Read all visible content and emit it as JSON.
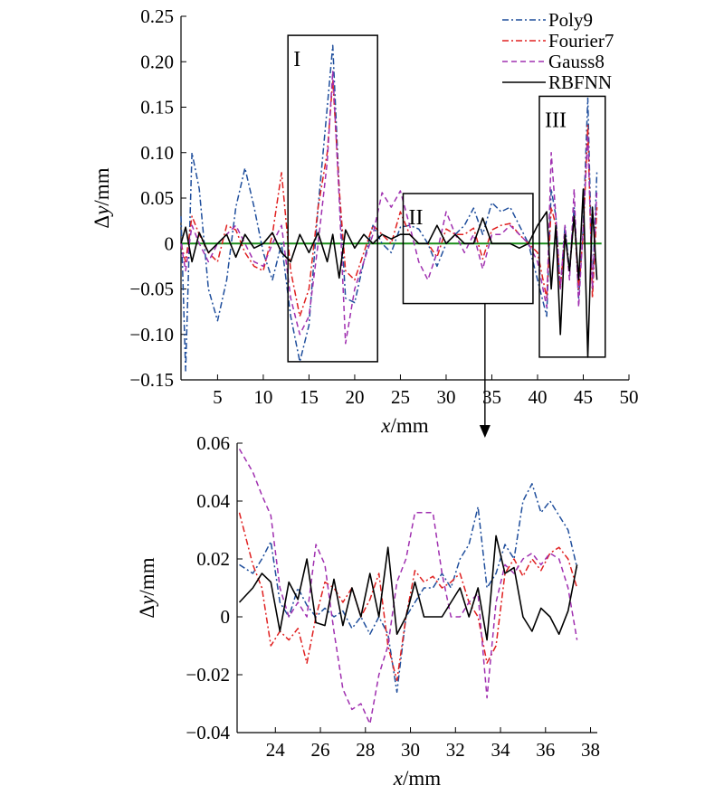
{
  "legend": [
    {
      "name": "Poly9",
      "color": "#1f4e9c",
      "dash": "dashdot"
    },
    {
      "name": "Fourier7",
      "color": "#e02020",
      "dash": "dashdot"
    },
    {
      "name": "Gauss8",
      "color": "#a030b0",
      "dash": "dashed"
    },
    {
      "name": "RBFNN",
      "color": "#000000",
      "dash": "solid"
    }
  ],
  "zero_line_color": "#1a8c1a",
  "regions": [
    {
      "label": "I",
      "xmin": 12.7,
      "xmax": 22.5,
      "ymin": -0.13,
      "ymax": 0.229
    },
    {
      "label": "II",
      "xmin": 25.3,
      "xmax": 39.5,
      "ymin": -0.066,
      "ymax": 0.055
    },
    {
      "label": "III",
      "xmin": 40.2,
      "xmax": 47.4,
      "ymin": -0.125,
      "ymax": 0.162
    }
  ],
  "chart_data": [
    {
      "type": "line",
      "xlabel_var": "x",
      "xlabel_unit": "/mm",
      "ylabel_var": "y",
      "ylabel_prefix": "Δ",
      "ylabel_unit": "/mm",
      "xlim": [
        1,
        50
      ],
      "ylim": [
        -0.15,
        0.25
      ],
      "xticks": [
        5,
        10,
        15,
        20,
        25,
        30,
        35,
        40,
        45,
        50
      ],
      "yticks": [
        -0.15,
        -0.1,
        -0.05,
        0,
        0.05,
        0.1,
        0.15,
        0.2,
        0.25
      ],
      "ytick_labels": [
        "−0.15",
        "−0.10",
        "−0.05",
        "0",
        "0.05",
        "0.10",
        "0.15",
        "0.20",
        "0.25"
      ],
      "series": [
        {
          "name": "Poly9",
          "x": [
            1,
            1.5,
            2.2,
            3,
            4,
            5,
            6,
            7,
            8,
            9,
            10,
            11,
            12,
            13,
            14,
            15,
            16,
            17,
            17.6,
            18.3,
            19,
            20,
            21,
            22,
            23,
            24,
            25,
            26,
            27,
            28,
            29,
            30,
            31,
            32,
            33,
            34,
            35,
            36,
            37,
            38,
            39,
            40,
            41,
            41.5,
            42,
            42.5,
            43,
            43.5,
            44,
            44.5,
            45,
            45.5,
            46,
            46.5
          ],
          "y": [
            0.03,
            -0.14,
            0.1,
            0.06,
            -0.05,
            -0.085,
            -0.04,
            0.04,
            0.083,
            0.04,
            -0.01,
            -0.04,
            0.0,
            -0.08,
            -0.13,
            -0.09,
            0.04,
            0.15,
            0.218,
            0.06,
            -0.06,
            -0.065,
            -0.02,
            0.02,
            0.0,
            -0.01,
            0.018,
            0.02,
            0.016,
            0.0,
            -0.025,
            0.0,
            0.01,
            0.02,
            0.039,
            0.01,
            0.045,
            0.035,
            0.04,
            0.02,
            0.0,
            -0.04,
            -0.08,
            0.06,
            0.03,
            -0.05,
            0.02,
            -0.03,
            0.04,
            -0.06,
            0.02,
            0.16,
            -0.05,
            0.08
          ]
        },
        {
          "name": "Fourier7",
          "x": [
            1,
            1.5,
            2.2,
            3,
            4,
            5,
            6,
            7,
            8,
            9,
            10,
            11,
            12,
            13,
            14,
            15,
            16,
            17,
            17.6,
            18.3,
            19,
            20,
            21,
            22,
            23,
            24,
            25,
            26,
            27,
            28,
            29,
            30,
            31,
            32,
            33,
            34,
            35,
            36,
            37,
            38,
            39,
            40,
            41,
            41.5,
            42,
            42.5,
            43,
            43.5,
            44,
            44.5,
            45,
            45.5,
            46,
            46.5
          ],
          "y": [
            0.0,
            -0.02,
            0.03,
            0.01,
            -0.01,
            -0.02,
            0.02,
            0.015,
            -0.01,
            -0.025,
            -0.03,
            0.01,
            0.078,
            -0.03,
            -0.08,
            -0.05,
            0.04,
            0.1,
            0.18,
            0.06,
            -0.03,
            -0.04,
            -0.01,
            0.02,
            0.01,
            0.0,
            0.035,
            0.01,
            0.0,
            0.0,
            -0.015,
            0.016,
            0.01,
            0.01,
            0.017,
            -0.017,
            0.015,
            0.02,
            0.022,
            0.01,
            0.0,
            -0.01,
            -0.06,
            0.04,
            0.02,
            -0.05,
            0.01,
            -0.03,
            0.03,
            -0.05,
            0.01,
            0.13,
            -0.06,
            0.04
          ]
        },
        {
          "name": "Gauss8",
          "x": [
            1,
            1.5,
            2.2,
            3,
            4,
            5,
            6,
            7,
            8,
            9,
            10,
            11,
            12,
            13,
            14,
            15,
            16,
            17,
            17.6,
            18.3,
            19,
            20,
            21,
            22,
            23,
            24,
            25,
            26,
            27,
            28,
            29,
            30,
            31,
            32,
            33,
            34,
            35,
            36,
            37,
            38,
            39,
            40,
            41,
            41.5,
            42,
            42.5,
            43,
            43.5,
            44,
            44.5,
            45,
            45.5,
            46,
            46.5
          ],
          "y": [
            0.0,
            -0.03,
            0.02,
            0.0,
            -0.02,
            0.0,
            0.01,
            0.02,
            0.0,
            -0.02,
            -0.025,
            0.0,
            0.02,
            -0.06,
            -0.1,
            -0.08,
            0.0,
            0.09,
            0.19,
            0.05,
            -0.11,
            -0.05,
            -0.02,
            0.01,
            0.056,
            0.04,
            0.058,
            0.02,
            -0.02,
            -0.04,
            -0.01,
            0.035,
            0.01,
            -0.01,
            0.01,
            -0.028,
            0.01,
            0.01,
            0.02,
            0.01,
            0.0,
            -0.02,
            -0.07,
            0.1,
            0.03,
            -0.05,
            0.02,
            -0.04,
            0.06,
            -0.07,
            0.02,
            0.12,
            -0.05,
            0.06
          ]
        },
        {
          "name": "RBFNN",
          "x": [
            1,
            1.5,
            2.2,
            3,
            4,
            5,
            6,
            7,
            8,
            9,
            10,
            11,
            12,
            13,
            14,
            15,
            16,
            17,
            17.6,
            18.3,
            19,
            20,
            21,
            22,
            23,
            24,
            25,
            26,
            27,
            28,
            29,
            30,
            31,
            32,
            33,
            34,
            35,
            36,
            37,
            38,
            39,
            40,
            41,
            41.5,
            42,
            42.5,
            43,
            43.5,
            44,
            44.5,
            45,
            45.5,
            46,
            46.5
          ],
          "y": [
            0.0,
            0.018,
            -0.02,
            0.012,
            -0.01,
            0.0,
            0.01,
            -0.015,
            0.01,
            -0.005,
            0.0,
            0.012,
            -0.01,
            -0.02,
            0.01,
            -0.01,
            0.012,
            -0.02,
            0.01,
            -0.038,
            0.015,
            -0.005,
            0.01,
            0.0,
            0.01,
            0.005,
            0.01,
            0.01,
            0.0,
            0.0,
            0.02,
            0.0,
            0.01,
            0.0,
            0.0,
            0.028,
            0.0,
            0.0,
            0.0,
            -0.005,
            0.0,
            0.02,
            0.035,
            -0.05,
            0.02,
            -0.1,
            0.01,
            -0.03,
            0.03,
            -0.04,
            0.06,
            -0.125,
            0.04,
            -0.04
          ]
        }
      ]
    },
    {
      "type": "line",
      "xlabel_var": "x",
      "xlabel_unit": "/mm",
      "ylabel_var": "y",
      "ylabel_prefix": "Δ",
      "ylabel_unit": "/mm",
      "xlim": [
        22.3,
        38.3
      ],
      "ylim": [
        -0.04,
        0.06
      ],
      "xticks": [
        24,
        26,
        28,
        30,
        32,
        34,
        36,
        38
      ],
      "yticks": [
        -0.04,
        -0.02,
        0,
        0.02,
        0.04,
        0.06
      ],
      "ytick_labels": [
        "−0.04",
        "−0.02",
        "0",
        "0.02",
        "0.04",
        "0.06"
      ],
      "series": [
        {
          "name": "Poly9",
          "x": [
            22.4,
            23,
            23.4,
            23.8,
            24.2,
            24.6,
            25,
            25.4,
            25.8,
            26.2,
            26.6,
            27,
            27.4,
            27.8,
            28.2,
            28.6,
            29,
            29.4,
            29.8,
            30.2,
            30.6,
            31,
            31.4,
            31.8,
            32.2,
            32.6,
            33,
            33.4,
            33.8,
            34.2,
            34.6,
            35,
            35.4,
            35.8,
            36.2,
            36.6,
            37,
            37.4
          ],
          "y": [
            0.018,
            0.015,
            0.02,
            0.026,
            0.005,
            0.0,
            0.01,
            0.004,
            0.0,
            0.003,
            0.0,
            0.002,
            -0.004,
            0.0,
            -0.006,
            0.0,
            -0.006,
            -0.026,
            0.0,
            0.005,
            0.01,
            0.01,
            0.015,
            0.01,
            0.02,
            0.025,
            0.038,
            0.01,
            0.015,
            0.025,
            0.02,
            0.04,
            0.046,
            0.036,
            0.04,
            0.035,
            0.03,
            0.017
          ]
        },
        {
          "name": "Fourier7",
          "x": [
            22.4,
            23,
            23.4,
            23.8,
            24.2,
            24.6,
            25,
            25.4,
            25.8,
            26.2,
            26.6,
            27,
            27.4,
            27.8,
            28.2,
            28.6,
            29,
            29.4,
            29.8,
            30.2,
            30.6,
            31,
            31.4,
            31.8,
            32.2,
            32.6,
            33,
            33.4,
            33.8,
            34.2,
            34.6,
            35,
            35.4,
            35.8,
            36.2,
            36.6,
            37,
            37.4
          ],
          "y": [
            0.036,
            0.018,
            0.01,
            -0.01,
            -0.005,
            -0.008,
            -0.004,
            -0.016,
            0.0,
            0.012,
            0.01,
            0.005,
            0.01,
            0.0,
            0.006,
            0.015,
            -0.01,
            -0.022,
            0.0,
            0.016,
            0.012,
            0.014,
            0.01,
            0.012,
            0.015,
            0.005,
            0.0,
            -0.016,
            -0.01,
            0.015,
            0.02,
            0.014,
            0.02,
            0.016,
            0.022,
            0.024,
            0.02,
            0.01
          ]
        },
        {
          "name": "Gauss8",
          "x": [
            22.4,
            23,
            23.4,
            23.8,
            24.2,
            24.6,
            25,
            25.4,
            25.8,
            26.2,
            26.6,
            27,
            27.4,
            27.8,
            28.2,
            28.6,
            29,
            29.4,
            29.8,
            30.2,
            30.6,
            31,
            31.4,
            31.8,
            32.2,
            32.6,
            33,
            33.4,
            33.8,
            34.2,
            34.6,
            35,
            35.4,
            35.8,
            36.2,
            36.6,
            37,
            37.4
          ],
          "y": [
            0.058,
            0.05,
            0.042,
            0.035,
            0.01,
            0.0,
            0.005,
            0.0,
            0.025,
            0.018,
            -0.005,
            -0.025,
            -0.032,
            -0.03,
            -0.037,
            -0.02,
            -0.01,
            0.012,
            0.02,
            0.036,
            0.036,
            0.036,
            0.015,
            0.0,
            0.0,
            0.005,
            0.008,
            -0.028,
            0.005,
            0.018,
            0.015,
            0.02,
            0.022,
            0.018,
            0.022,
            0.02,
            0.01,
            -0.008
          ]
        },
        {
          "name": "RBFNN",
          "x": [
            22.4,
            23,
            23.4,
            23.8,
            24.2,
            24.6,
            25,
            25.4,
            25.8,
            26.2,
            26.6,
            27,
            27.4,
            27.8,
            28.2,
            28.6,
            29,
            29.4,
            29.8,
            30.2,
            30.6,
            31,
            31.4,
            31.8,
            32.2,
            32.6,
            33,
            33.4,
            33.8,
            34.2,
            34.6,
            35,
            35.4,
            35.8,
            36.2,
            36.6,
            37,
            37.4
          ],
          "y": [
            0.005,
            0.01,
            0.015,
            0.012,
            -0.005,
            0.012,
            0.006,
            0.02,
            -0.002,
            -0.003,
            0.013,
            -0.003,
            0.01,
            0.0,
            0.015,
            0.0,
            0.024,
            -0.006,
            0.0,
            0.012,
            0.0,
            0.0,
            0.0,
            0.005,
            0.01,
            0.0,
            0.01,
            -0.008,
            0.028,
            0.015,
            0.017,
            0.0,
            -0.005,
            0.003,
            0.0,
            -0.006,
            0.002,
            0.018
          ]
        }
      ]
    }
  ]
}
